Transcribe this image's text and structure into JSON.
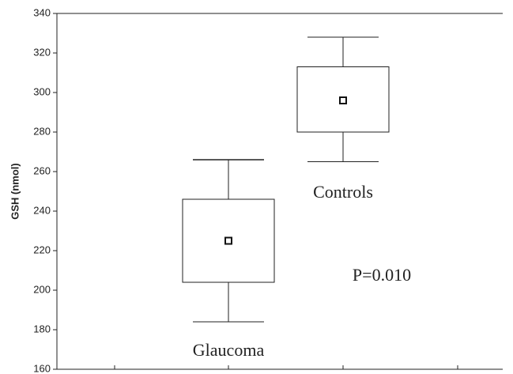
{
  "chart_data": {
    "type": "box",
    "y_label": "GSH (nmol)",
    "categories": [
      "Glaucoma",
      "Controls"
    ],
    "mean": [
      225,
      296
    ],
    "box_low": [
      204,
      280
    ],
    "box_high": [
      246,
      313
    ],
    "whisker_low": [
      184,
      265
    ],
    "whisker_high": [
      266,
      328
    ],
    "ylim": [
      160,
      340
    ],
    "yticks": [
      160,
      180,
      200,
      220,
      240,
      260,
      280,
      300,
      320,
      340
    ],
    "annotation": "P=0.010"
  }
}
